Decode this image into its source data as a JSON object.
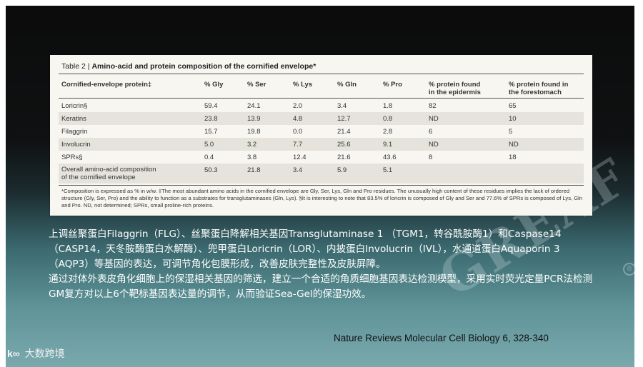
{
  "table": {
    "number": "Table 2 |",
    "title": "Amino-acid and protein composition of the cornified envelope*",
    "headers": [
      "Cornified-envelope protein‡",
      "% Gly",
      "% Ser",
      "% Lys",
      "% Gln",
      "% Pro",
      "% protein found\nin the epidermis",
      "% protein found in\nthe forestomach"
    ],
    "rows": [
      [
        "Loricrin§",
        "59.4",
        "24.1",
        "2.0",
        "3.4",
        "1.8",
        "82",
        "65"
      ],
      [
        "Keratins",
        "23.8",
        "13.9",
        "4.8",
        "12.7",
        "0.8",
        "ND",
        "10"
      ],
      [
        "Filaggrin",
        "15.7",
        "19.8",
        "0.0",
        "21.4",
        "2.8",
        "6",
        "5"
      ],
      [
        "Involucrin",
        "5.0",
        "3.2",
        "7.7",
        "25.6",
        "9.1",
        "ND",
        "ND"
      ],
      [
        "SPRs§",
        "0.4",
        "3.8",
        "12.4",
        "21.6",
        "43.6",
        "8",
        "18"
      ],
      [
        "Overall amino-acid composition\nof the cornified envelope",
        "50.3",
        "21.8",
        "3.4",
        "5.9",
        "5.1",
        "",
        ""
      ]
    ],
    "footnote": "*Composition is expressed as % in w/w. ‡The most abundant amino acids in the cornified envelope are Gly, Ser, Lys, Gln and Pro residues. The unusually high content of these residues implies the lack of ordered structure (Gly, Ser, Pro) and the ability to function as a substrates for transglutaminases (Gln, Lys). §It is interesting to note that 83.5% of loricrin is composed of Gly and Ser and 77.6% of SPRs is composed of Lys, Gln and Pro. ND, not determined; SPRs, small proline-rich proteins."
  },
  "caption": {
    "paragraph1": "上调丝聚蛋白Filaggrin（FLG）、丝聚蛋白降解相关基因Transglutaminase 1 （TGM1，转谷酰胺酶1）和Caspase14（CASP14，天冬胺酶蛋白水解酶）、兜甲蛋白Loricrin（LOR）、内披蛋白Involucrin（IVL），水通道蛋白Aquaporin 3（AQP3）等基因的表达，可调节角化包膜形成，改善皮肤完整性及皮肤屏障。",
    "paragraph2": "通过对体外表皮角化细胞上的保湿相关基因的筛选，建立一个合适的角质细胞基因表达检测模型，采用实时荧光定量PCR法检测GM复方对以上6个靶标基因表达量的调节，从而验证Sea-Gel的保湿功效。"
  },
  "source": "Nature Reviews Molecular Cell Biology 6, 328-340",
  "logo_text": "大数跨境",
  "logo_mark": "k∞",
  "watermark": "GREAF",
  "watermark_mark": "®"
}
